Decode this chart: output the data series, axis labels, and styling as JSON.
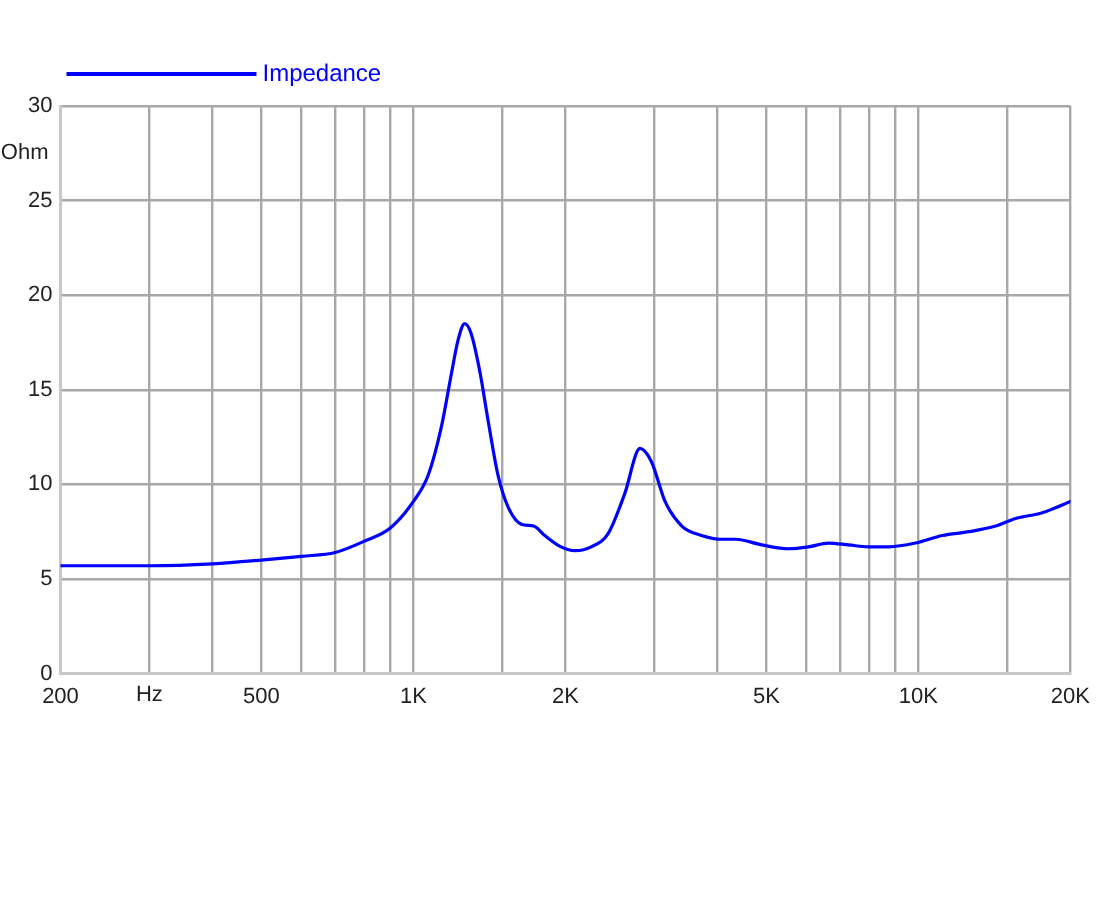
{
  "chart_data": {
    "type": "line",
    "xlabel": "Hz",
    "ylabel": "Ohm",
    "log": "x",
    "grid": true,
    "legend": "top left",
    "marker": "none",
    "line_style": "solid",
    "xlim": [
      200,
      20000
    ],
    "ylim": [
      0,
      30
    ],
    "xticks": [
      200,
      {
        "value": 300,
        "label": null
      },
      {
        "value": 400,
        "label": null
      },
      500,
      {
        "value": 600,
        "label": null
      },
      {
        "value": 700,
        "label": null
      },
      {
        "value": 800,
        "label": null
      },
      {
        "value": 900,
        "label": null
      },
      {
        "value": 1000,
        "label": "1K"
      },
      {
        "value": 1500,
        "label": null
      },
      {
        "value": 2000,
        "label": "2K"
      },
      {
        "value": 3000,
        "label": null
      },
      {
        "value": 4000,
        "label": null
      },
      {
        "value": 5000,
        "label": "5K"
      },
      {
        "value": 6000,
        "label": null
      },
      {
        "value": 7000,
        "label": null
      },
      {
        "value": 8000,
        "label": null
      },
      {
        "value": 9000,
        "label": null
      },
      {
        "value": 10000,
        "label": "10K"
      },
      {
        "value": 15000,
        "label": null
      },
      {
        "value": 20000,
        "label": "20K"
      }
    ],
    "yticks": [
      0,
      5,
      10,
      15,
      20,
      25,
      30
    ],
    "x": [
      200,
      300,
      400,
      500,
      600,
      700,
      800,
      900,
      1000,
      1070,
      1135,
      1190,
      1225,
      1263,
      1300,
      1355,
      1405,
      1470,
      1540,
      1635,
      1730,
      1820,
      1960,
      2090,
      2250,
      2430,
      2620,
      2810,
      2960,
      3150,
      3400,
      3720,
      4080,
      4340,
      4900,
      5530,
      6060,
      6640,
      7280,
      7970,
      8730,
      9870,
      11150,
      12590,
      14220,
      15580,
      17590,
      20000
    ],
    "series": [
      {
        "name": "Impedance",
        "color": "#0000ff",
        "values": [
          5.7,
          5.7,
          5.8,
          6.0,
          6.2,
          6.4,
          7.0,
          7.7,
          9.1,
          10.5,
          13.0,
          15.9,
          17.6,
          18.5,
          18.0,
          15.9,
          13.4,
          10.5,
          8.8,
          7.9,
          7.8,
          7.3,
          6.7,
          6.5,
          6.7,
          7.4,
          9.5,
          11.9,
          11.2,
          9.1,
          7.8,
          7.3,
          7.1,
          7.1,
          6.8,
          6.6,
          6.7,
          6.9,
          6.8,
          6.7,
          6.7,
          6.9,
          7.3,
          7.5,
          7.8,
          8.2,
          8.5,
          9.1
        ]
      }
    ]
  }
}
